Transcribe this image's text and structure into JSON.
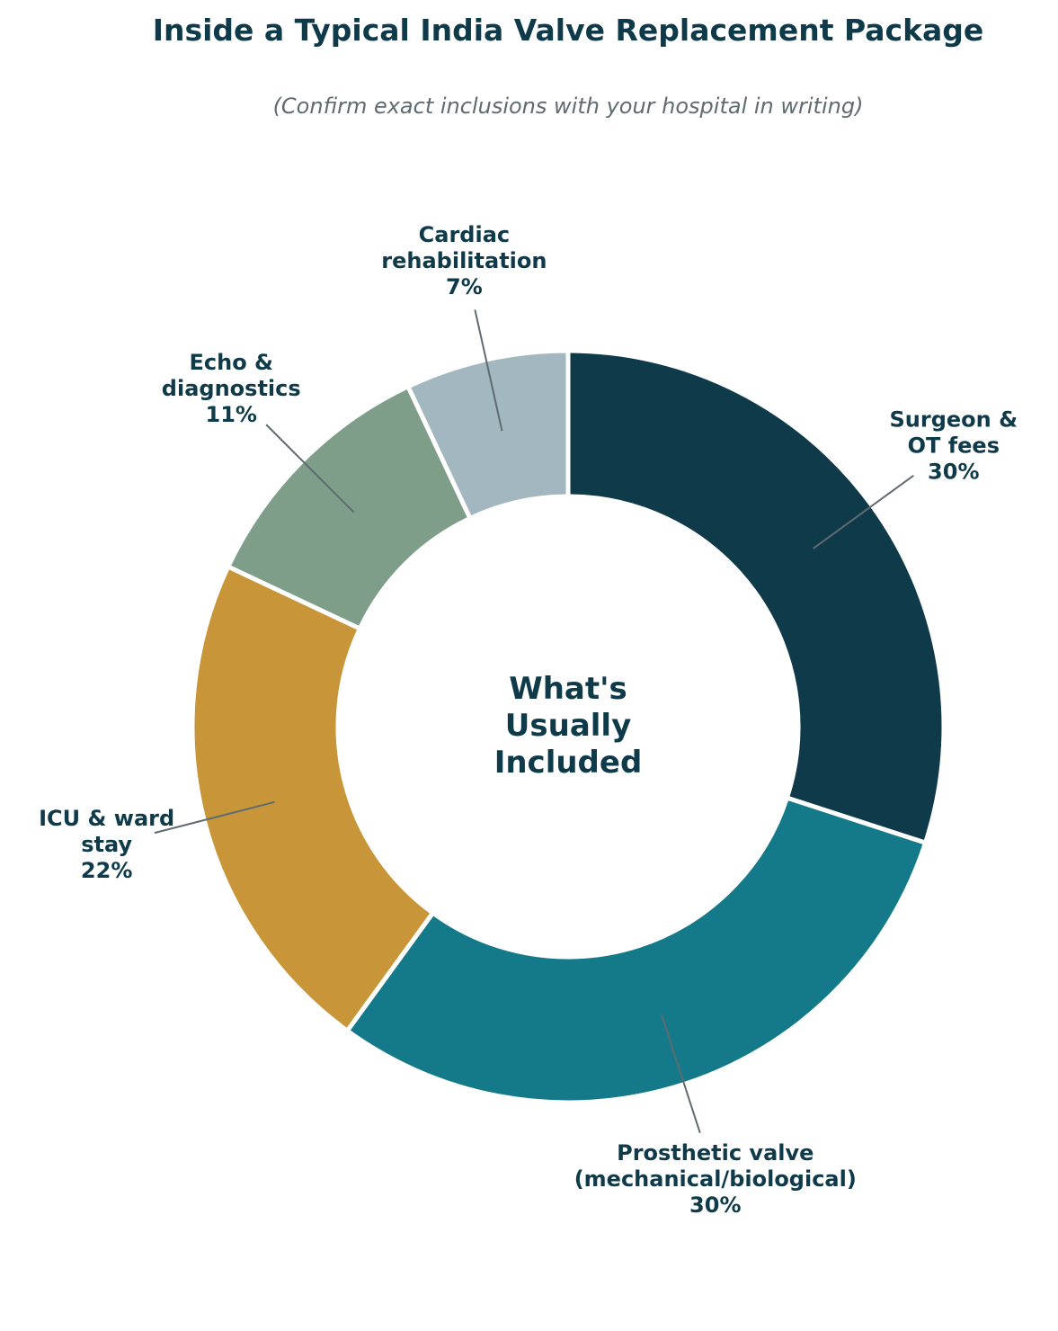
{
  "chart_data": {
    "type": "pie",
    "variant": "donut",
    "title": "Inside a Typical India Valve Replacement Package",
    "subtitle": "(Confirm exact inclusions with your hospital in writing)",
    "center_label": [
      "What's",
      "Usually",
      "Included"
    ],
    "legend": "none",
    "slices": [
      {
        "label": [
          "Surgeon &",
          "OT fees"
        ],
        "value": 30,
        "value_label": "30%",
        "color": "#0f3a4a"
      },
      {
        "label": [
          "Prosthetic valve",
          "(mechanical/biological)"
        ],
        "value": 30,
        "value_label": "30%",
        "color": "#147a8a"
      },
      {
        "label": [
          "ICU & ward",
          "stay"
        ],
        "value": 22,
        "value_label": "22%",
        "color": "#c89638"
      },
      {
        "label": [
          "Echo &",
          "diagnostics"
        ],
        "value": 11,
        "value_label": "11%",
        "color": "#7f9e8a"
      },
      {
        "label": [
          "Cardiac",
          "rehabilitation"
        ],
        "value": 7,
        "value_label": "7%",
        "color": "#a2b7bf"
      }
    ]
  },
  "colors": {
    "text": "#0f3a4a",
    "subtitle": "#5f6b70",
    "leader_line": "#5f6b70",
    "separator": "#ffffff"
  }
}
